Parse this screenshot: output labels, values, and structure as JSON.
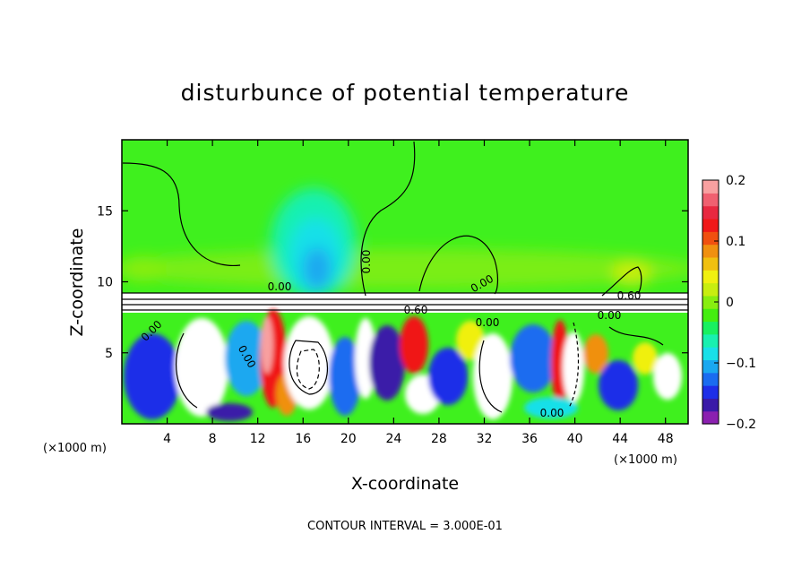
{
  "chart_data": {
    "type": "heatmap",
    "title": "disturbunce of potential temperature",
    "xlabel": "X-coordinate",
    "ylabel": "Z-coordinate",
    "x_unit_left": "(×1000 m)",
    "x_unit_right": "(×1000 m)",
    "xlim": [
      0,
      50
    ],
    "ylim": [
      0,
      20
    ],
    "x_ticks": [
      4,
      8,
      12,
      16,
      20,
      24,
      28,
      32,
      36,
      40,
      44,
      48
    ],
    "x_tick_labels": [
      "4",
      "8",
      "12",
      "16",
      "20",
      "24",
      "28",
      "32",
      "36",
      "40",
      "44",
      "48"
    ],
    "y_ticks": [
      5,
      10,
      15
    ],
    "y_tick_labels": [
      "5",
      "10",
      "15"
    ],
    "colorbar": {
      "range": [
        -0.2,
        0.2
      ],
      "ticks": [
        0.2,
        0.1,
        0,
        -0.1,
        -0.2
      ],
      "tick_labels": [
        "0.2",
        "0.1",
        "0",
        "−0.1",
        "−0.2"
      ],
      "colors": [
        "#8b20b0",
        "#3a1aa8",
        "#1e2ee8",
        "#1a6cf0",
        "#1aa8f0",
        "#18e0e8",
        "#18f0b0",
        "#18f060",
        "#44ee10",
        "#88ee10",
        "#c8ee10",
        "#f0f010",
        "#f0c010",
        "#f09010",
        "#f05010",
        "#f01818",
        "#e82840",
        "#f06070",
        "#f8a0a0"
      ]
    },
    "contour_labels": [
      "0.00",
      "0.00",
      "0.00",
      "0.00",
      "0.00",
      "0.60",
      "0.60",
      "0.00",
      "0.00",
      "0.00"
    ],
    "contour_interval_text": "CONTOUR INTERVAL = 3.000E-01"
  }
}
